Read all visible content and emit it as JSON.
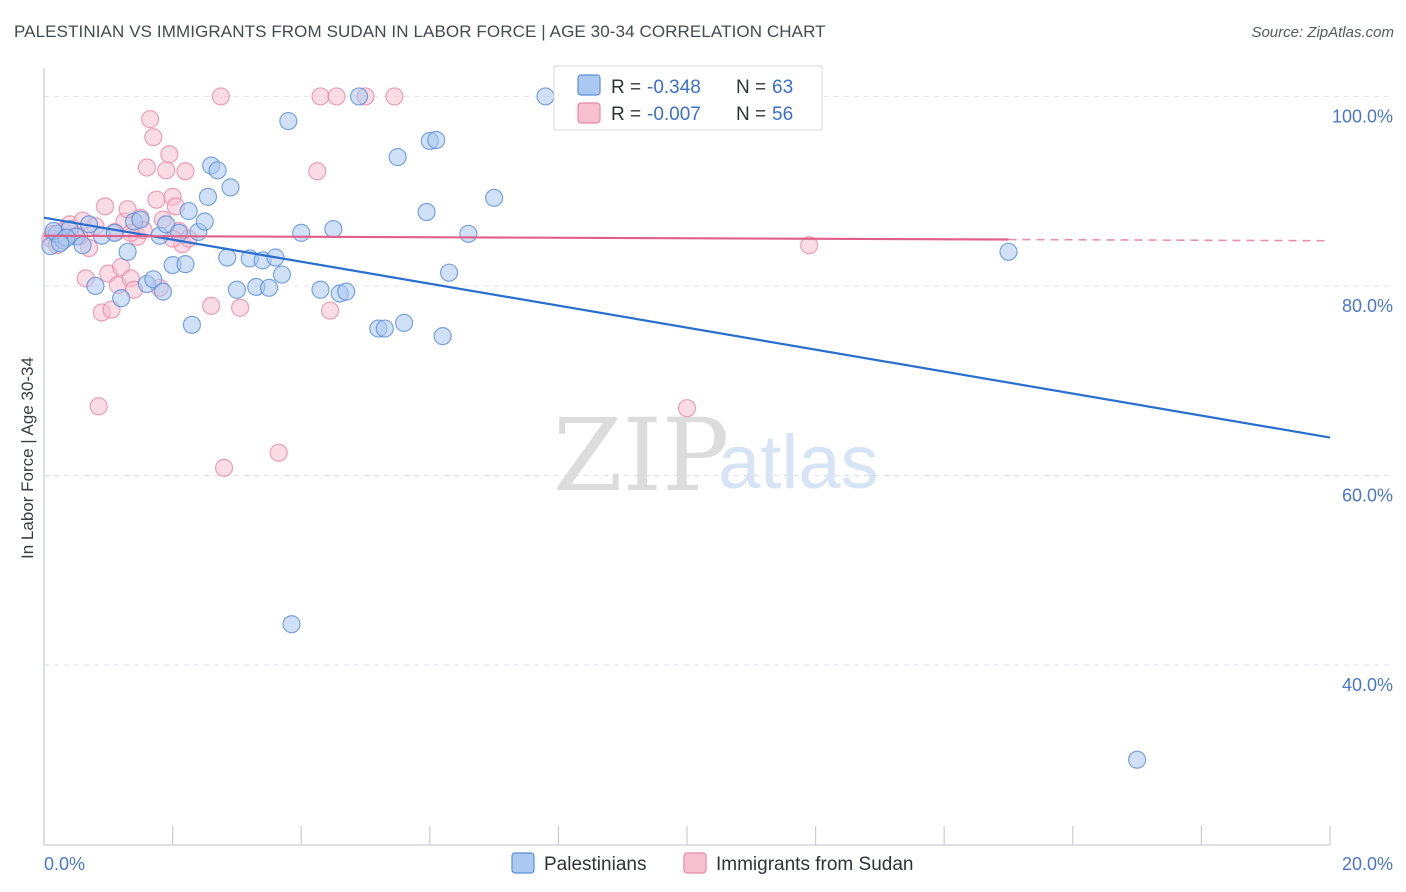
{
  "title": "PALESTINIAN VS IMMIGRANTS FROM SUDAN IN LABOR FORCE | AGE 30-34 CORRELATION CHART",
  "source": "Source: ZipAtlas.com",
  "colors": {
    "blue_fill": "#aac8f0",
    "blue_stroke": "#5b8fd8",
    "blue_line": "#2a6fd0",
    "pink_fill": "#f6c0d0",
    "pink_stroke": "#e88aa8",
    "pink_line": "#e0608a",
    "tick_text": "#4a78c8",
    "grid": "#dfe3e8"
  },
  "chart_data": {
    "type": "scatter",
    "title": "PALESTINIAN VS IMMIGRANTS FROM SUDAN IN LABOR FORCE | AGE 30-34 CORRELATION CHART",
    "xlabel": "",
    "ylabel": "In Labor Force | Age 30-34",
    "xlim": [
      0,
      20
    ],
    "ylim": [
      21,
      103
    ],
    "x_tick_labels": [
      "0.0%",
      "20.0%"
    ],
    "y_ticks": [
      40,
      60,
      80,
      100
    ],
    "y_tick_labels": [
      "40.0%",
      "60.0%",
      "80.0%",
      "100.0%"
    ],
    "watermark": {
      "zip": "ZIP",
      "atlas": "atlas"
    },
    "legend": [
      {
        "r_label": "R =",
        "r_value": "-0.348",
        "n_label": "N =",
        "n_value": "63"
      },
      {
        "r_label": "R =",
        "r_value": "-0.007",
        "n_label": "N =",
        "n_value": "56"
      }
    ],
    "series": [
      {
        "name": "Palestinians",
        "trend": {
          "x": [
            0.0,
            20.0
          ],
          "y": [
            87.2,
            64.0
          ],
          "dashed_from": null
        },
        "points": [
          [
            0.1,
            84.2
          ],
          [
            0.2,
            85.5
          ],
          [
            0.3,
            84.8
          ],
          [
            0.4,
            86.0
          ],
          [
            0.5,
            85.2
          ],
          [
            0.6,
            84.3
          ],
          [
            0.7,
            86.5
          ],
          [
            0.8,
            80.0
          ],
          [
            0.9,
            85.3
          ],
          [
            1.1,
            85.6
          ],
          [
            1.2,
            78.7
          ],
          [
            1.3,
            83.6
          ],
          [
            1.4,
            86.8
          ],
          [
            1.5,
            87.0
          ],
          [
            1.6,
            80.2
          ],
          [
            1.7,
            80.7
          ],
          [
            1.8,
            85.3
          ],
          [
            1.9,
            86.5
          ],
          [
            1.85,
            79.4
          ],
          [
            2.0,
            82.2
          ],
          [
            2.1,
            85.6
          ],
          [
            2.2,
            82.3
          ],
          [
            2.25,
            87.9
          ],
          [
            2.3,
            75.9
          ],
          [
            2.4,
            85.7
          ],
          [
            2.5,
            86.8
          ],
          [
            2.55,
            89.4
          ],
          [
            2.6,
            92.7
          ],
          [
            2.7,
            92.2
          ],
          [
            2.85,
            83.0
          ],
          [
            2.9,
            90.4
          ],
          [
            3.0,
            79.6
          ],
          [
            3.2,
            82.9
          ],
          [
            3.3,
            79.9
          ],
          [
            3.4,
            82.7
          ],
          [
            3.5,
            79.8
          ],
          [
            3.6,
            83.0
          ],
          [
            3.7,
            81.2
          ],
          [
            3.8,
            97.4
          ],
          [
            4.0,
            85.6
          ],
          [
            4.3,
            79.6
          ],
          [
            4.5,
            86.0
          ],
          [
            4.6,
            79.2
          ],
          [
            4.7,
            79.4
          ],
          [
            4.9,
            100.0
          ],
          [
            5.2,
            75.5
          ],
          [
            5.3,
            75.5
          ],
          [
            5.5,
            93.6
          ],
          [
            5.6,
            76.1
          ],
          [
            5.95,
            87.8
          ],
          [
            6.0,
            95.3
          ],
          [
            6.1,
            95.4
          ],
          [
            6.2,
            74.7
          ],
          [
            6.3,
            81.4
          ],
          [
            6.6,
            85.5
          ],
          [
            7.0,
            89.3
          ],
          [
            7.8,
            100.0
          ],
          [
            15.0,
            83.6
          ],
          [
            17.0,
            30.0
          ],
          [
            3.85,
            44.3
          ],
          [
            0.15,
            85.8
          ],
          [
            0.35,
            85.1
          ],
          [
            0.25,
            84.5
          ]
        ]
      },
      {
        "name": "Immigrants from Sudan",
        "trend": {
          "x": [
            0.0,
            15.0
          ],
          "y": [
            85.3,
            84.9
          ],
          "dashed_from": 15.0,
          "dashed_to": 20.0
        },
        "points": [
          [
            0.1,
            85.0
          ],
          [
            0.2,
            84.3
          ],
          [
            0.3,
            85.8
          ],
          [
            0.4,
            86.5
          ],
          [
            0.5,
            85.3
          ],
          [
            0.6,
            86.9
          ],
          [
            0.65,
            80.8
          ],
          [
            0.7,
            84.0
          ],
          [
            0.8,
            86.3
          ],
          [
            0.85,
            67.3
          ],
          [
            0.9,
            77.2
          ],
          [
            0.95,
            88.4
          ],
          [
            1.0,
            81.3
          ],
          [
            1.05,
            77.5
          ],
          [
            1.1,
            85.7
          ],
          [
            1.15,
            80.1
          ],
          [
            1.2,
            82.0
          ],
          [
            1.25,
            86.8
          ],
          [
            1.3,
            88.1
          ],
          [
            1.35,
            80.8
          ],
          [
            1.4,
            79.6
          ],
          [
            1.45,
            85.2
          ],
          [
            1.5,
            87.2
          ],
          [
            1.55,
            85.9
          ],
          [
            1.6,
            92.5
          ],
          [
            1.65,
            97.6
          ],
          [
            1.7,
            95.7
          ],
          [
            1.75,
            89.1
          ],
          [
            1.8,
            79.8
          ],
          [
            1.85,
            87.0
          ],
          [
            1.9,
            92.2
          ],
          [
            1.95,
            93.9
          ],
          [
            2.0,
            89.4
          ],
          [
            2.05,
            88.4
          ],
          [
            2.1,
            85.8
          ],
          [
            2.15,
            84.4
          ],
          [
            2.2,
            92.1
          ],
          [
            2.25,
            85.0
          ],
          [
            2.6,
            77.9
          ],
          [
            2.75,
            100.0
          ],
          [
            2.8,
            60.8
          ],
          [
            3.05,
            77.7
          ],
          [
            3.65,
            62.4
          ],
          [
            4.25,
            92.1
          ],
          [
            4.45,
            77.4
          ],
          [
            4.3,
            100.0
          ],
          [
            4.55,
            100.0
          ],
          [
            5.0,
            100.0
          ],
          [
            5.45,
            100.0
          ],
          [
            10.0,
            67.1
          ],
          [
            11.9,
            84.3
          ],
          [
            0.15,
            85.5
          ],
          [
            0.3,
            85.0
          ],
          [
            0.55,
            85.2
          ],
          [
            1.35,
            85.6
          ],
          [
            2.0,
            85.0
          ]
        ]
      }
    ]
  },
  "bottom_legend": {
    "items": [
      "Palestinians",
      "Immigrants from Sudan"
    ]
  }
}
